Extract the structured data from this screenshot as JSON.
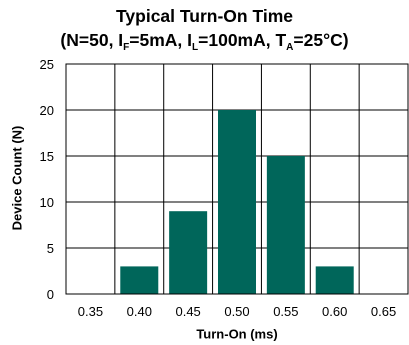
{
  "chart_data": {
    "type": "bar",
    "title": "Typical Turn-On Time",
    "subtitle": {
      "open": "(N=50, I",
      "s1": "F",
      "p1": "=5mA, I",
      "s2": "L",
      "p2": "=100mA, T",
      "s3": "A",
      "close": "=25°C)"
    },
    "xlabel": "Turn-On (ms)",
    "ylabel": "Device Count (N)",
    "categories": [
      "0.35",
      "0.40",
      "0.45",
      "0.50",
      "0.55",
      "0.60",
      "0.65"
    ],
    "values": [
      0,
      3,
      9,
      20,
      15,
      3,
      0
    ],
    "ylim": [
      0,
      25
    ],
    "yticks": [
      "0",
      "5",
      "10",
      "15",
      "20",
      "25"
    ],
    "grid": true,
    "bar_color": "#00665a",
    "grid_color": "#000000"
  }
}
